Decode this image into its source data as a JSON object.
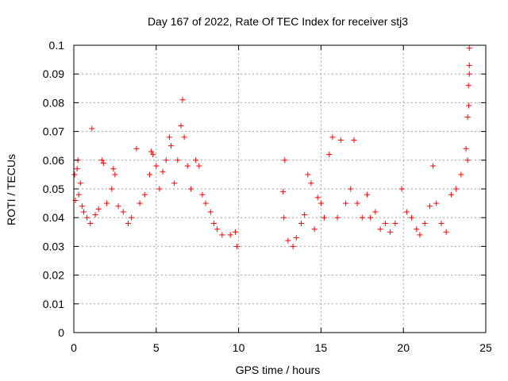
{
  "chart_data": {
    "type": "scatter",
    "title": "Day 167 of 2022, Rate Of TEC Index for receiver stj3",
    "xlabel": "GPS time / hours",
    "ylabel": "ROTI / TECUs",
    "xlim": [
      0,
      25
    ],
    "ylim": [
      0,
      0.1
    ],
    "x_ticks": [
      0,
      5,
      10,
      15,
      20,
      25
    ],
    "y_ticks": [
      0,
      0.01,
      0.02,
      0.03,
      0.04,
      0.05,
      0.06,
      0.07,
      0.08,
      0.09,
      0.1
    ],
    "x_tick_labels": [
      "0",
      "5",
      "10",
      "15",
      "20",
      "25"
    ],
    "y_tick_labels": [
      "0",
      "0.01",
      "0.02",
      "0.03",
      "0.04",
      "0.05",
      "0.06",
      "0.07",
      "0.08",
      "0.09",
      "0.1"
    ],
    "grid": true,
    "marker": "+",
    "marker_color": "#ff0000",
    "data_gap_hours": [
      10.1,
      12.6
    ],
    "series": [
      {
        "name": "ROTI",
        "points": [
          [
            0.05,
            0.055
          ],
          [
            0.1,
            0.046
          ],
          [
            0.2,
            0.057
          ],
          [
            0.25,
            0.06
          ],
          [
            0.3,
            0.048
          ],
          [
            0.4,
            0.052
          ],
          [
            0.5,
            0.044
          ],
          [
            0.6,
            0.042
          ],
          [
            0.8,
            0.04
          ],
          [
            1.0,
            0.038
          ],
          [
            1.1,
            0.071
          ],
          [
            1.3,
            0.041
          ],
          [
            1.5,
            0.043
          ],
          [
            1.7,
            0.06
          ],
          [
            1.8,
            0.059
          ],
          [
            2.0,
            0.045
          ],
          [
            2.3,
            0.05
          ],
          [
            2.4,
            0.057
          ],
          [
            2.5,
            0.055
          ],
          [
            2.7,
            0.044
          ],
          [
            3.0,
            0.042
          ],
          [
            3.3,
            0.038
          ],
          [
            3.5,
            0.04
          ],
          [
            3.8,
            0.064
          ],
          [
            4.0,
            0.045
          ],
          [
            4.3,
            0.048
          ],
          [
            4.6,
            0.055
          ],
          [
            4.7,
            0.063
          ],
          [
            4.8,
            0.062
          ],
          [
            5.0,
            0.058
          ],
          [
            5.2,
            0.05
          ],
          [
            5.4,
            0.056
          ],
          [
            5.6,
            0.06
          ],
          [
            5.8,
            0.068
          ],
          [
            5.9,
            0.065
          ],
          [
            6.1,
            0.052
          ],
          [
            6.3,
            0.06
          ],
          [
            6.5,
            0.072
          ],
          [
            6.6,
            0.081
          ],
          [
            6.7,
            0.068
          ],
          [
            6.9,
            0.058
          ],
          [
            7.1,
            0.05
          ],
          [
            7.4,
            0.06
          ],
          [
            7.6,
            0.058
          ],
          [
            7.8,
            0.048
          ],
          [
            8.0,
            0.045
          ],
          [
            8.3,
            0.042
          ],
          [
            8.5,
            0.038
          ],
          [
            8.7,
            0.036
          ],
          [
            9.0,
            0.034
          ],
          [
            9.5,
            0.034
          ],
          [
            9.8,
            0.035
          ],
          [
            9.9,
            0.03
          ],
          [
            12.7,
            0.049
          ],
          [
            12.75,
            0.04
          ],
          [
            12.8,
            0.06
          ],
          [
            13.0,
            0.032
          ],
          [
            13.3,
            0.03
          ],
          [
            13.5,
            0.033
          ],
          [
            13.8,
            0.038
          ],
          [
            14.0,
            0.041
          ],
          [
            14.2,
            0.055
          ],
          [
            14.4,
            0.052
          ],
          [
            14.6,
            0.036
          ],
          [
            14.8,
            0.047
          ],
          [
            15.0,
            0.045
          ],
          [
            15.2,
            0.04
          ],
          [
            15.5,
            0.062
          ],
          [
            15.7,
            0.068
          ],
          [
            16.0,
            0.04
          ],
          [
            16.2,
            0.067
          ],
          [
            16.5,
            0.045
          ],
          [
            16.8,
            0.05
          ],
          [
            17.0,
            0.067
          ],
          [
            17.2,
            0.045
          ],
          [
            17.5,
            0.04
          ],
          [
            17.8,
            0.048
          ],
          [
            18.0,
            0.04
          ],
          [
            18.3,
            0.042
          ],
          [
            18.6,
            0.036
          ],
          [
            18.9,
            0.038
          ],
          [
            19.2,
            0.035
          ],
          [
            19.5,
            0.038
          ],
          [
            19.9,
            0.05
          ],
          [
            20.2,
            0.042
          ],
          [
            20.5,
            0.04
          ],
          [
            20.8,
            0.036
          ],
          [
            21.0,
            0.034
          ],
          [
            21.3,
            0.038
          ],
          [
            21.6,
            0.044
          ],
          [
            21.8,
            0.058
          ],
          [
            22.0,
            0.045
          ],
          [
            22.3,
            0.038
          ],
          [
            22.6,
            0.035
          ],
          [
            22.9,
            0.048
          ],
          [
            23.2,
            0.05
          ],
          [
            23.5,
            0.055
          ],
          [
            23.8,
            0.064
          ],
          [
            23.9,
            0.075
          ],
          [
            23.95,
            0.086
          ],
          [
            24.0,
            0.09
          ],
          [
            24.0,
            0.093
          ],
          [
            24.0,
            0.099
          ],
          [
            23.97,
            0.079
          ],
          [
            23.9,
            0.06
          ]
        ]
      }
    ]
  }
}
